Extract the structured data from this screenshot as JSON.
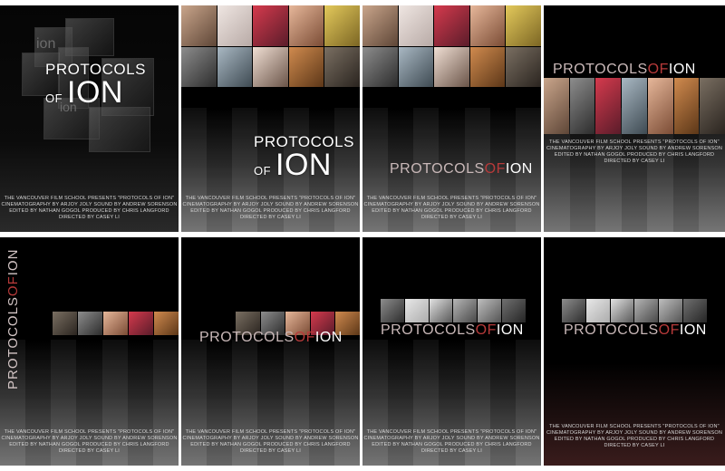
{
  "title": {
    "line1": "PROTOCOLS",
    "of": "OF",
    "ion": "ION",
    "inline_a": "PROTOCOLS",
    "inline_b": "OF",
    "inline_c": "ION"
  },
  "credits": {
    "line1": "THE VANCOUVER FILM SCHOOL PRESENTS \"PROTOCOLS OF ION\"",
    "line2": "CINEMATOGRAPHY BY ARJOY JOLY  SOUND BY ANDREW SORENSON",
    "line3": "EDITED BY NATHAN GOGOL  PRODUCED BY CHRIS LANGFORD",
    "line4": "DIRECTED BY CASEY LI"
  },
  "poster1": {
    "watermark": "ion"
  },
  "colors": {
    "background": "#000000",
    "title_white": "#ffffff",
    "title_pink": "#c9b8b8",
    "title_red": "#b73a3a"
  }
}
